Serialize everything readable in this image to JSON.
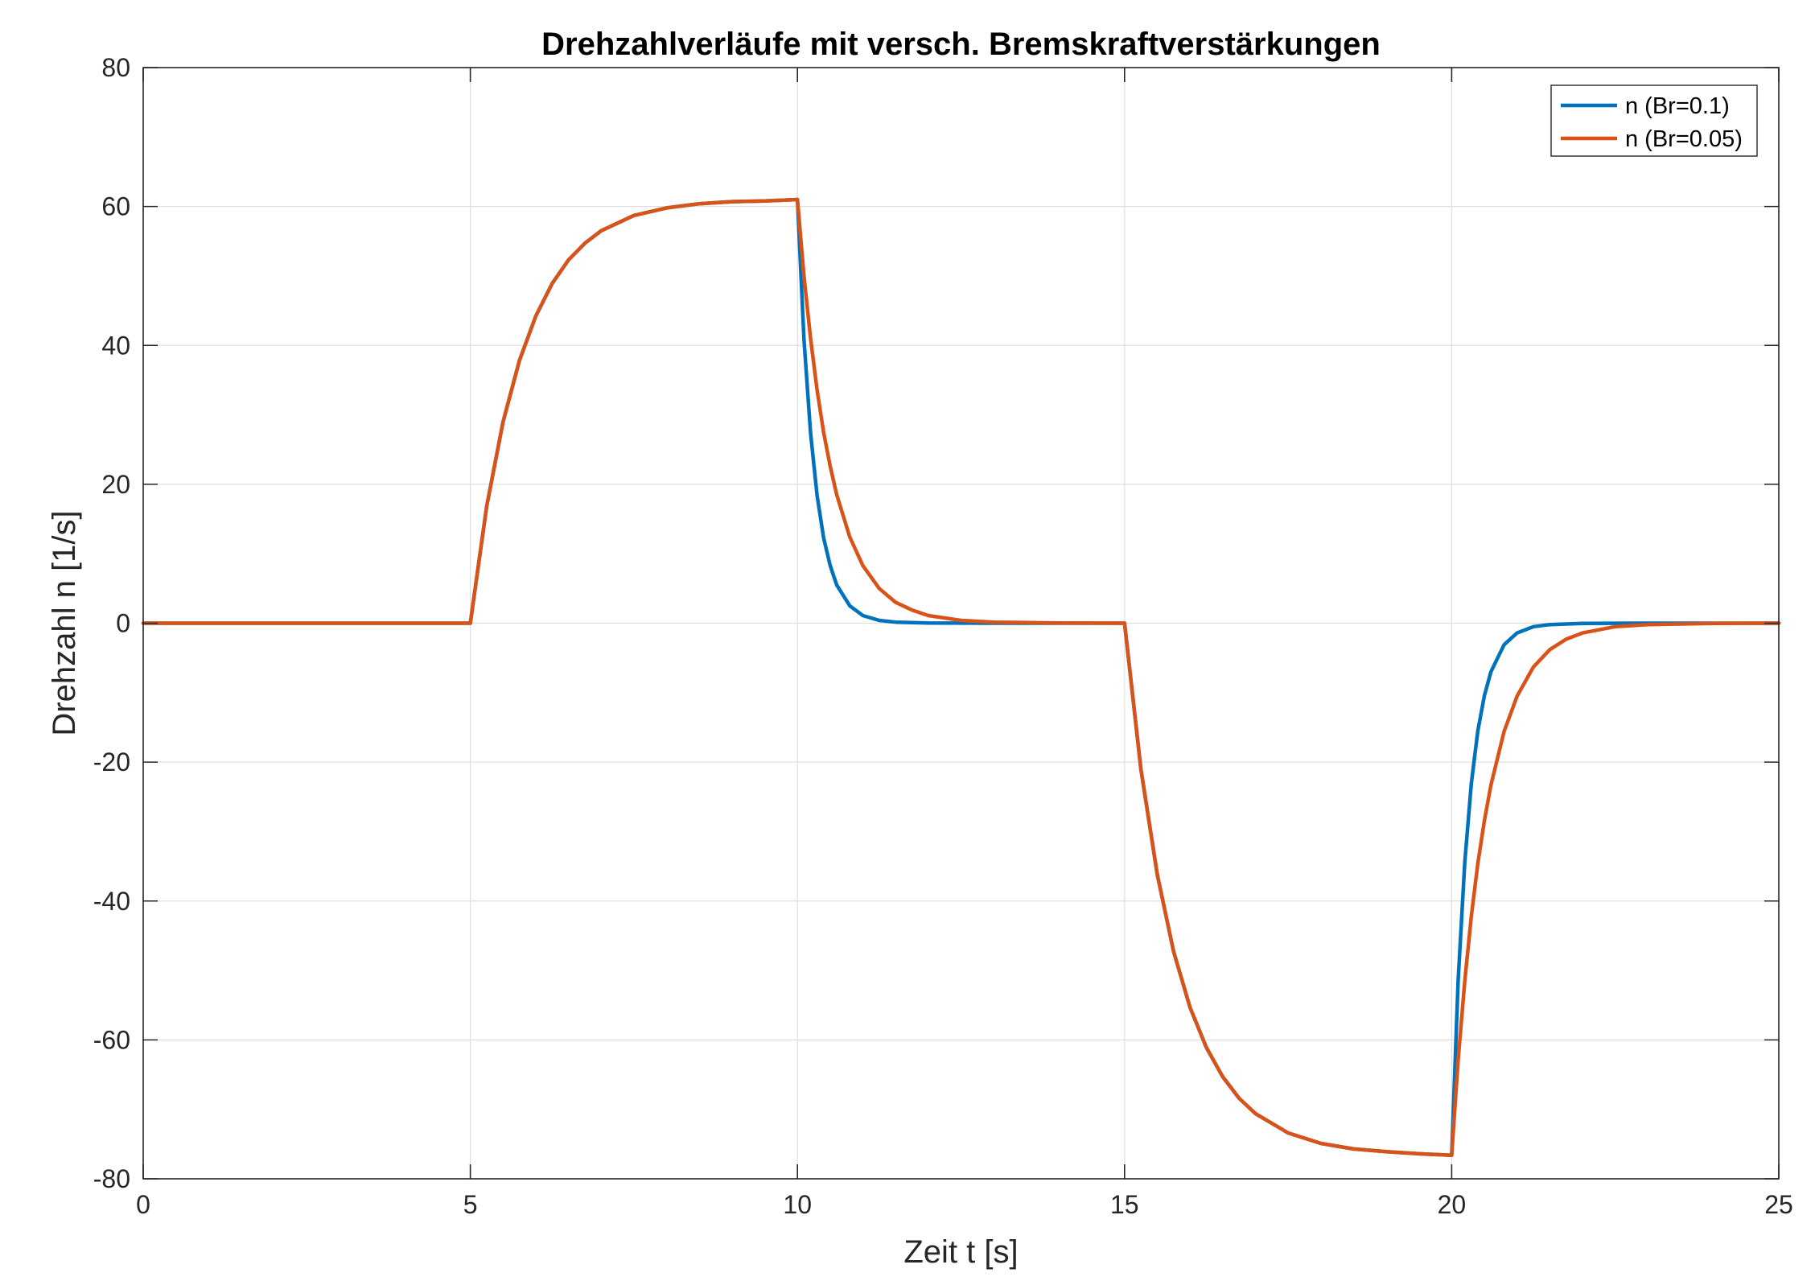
{
  "chart_data": {
    "type": "line",
    "title": "Drehzahlverläufe mit versch. Bremskraftverstärkungen",
    "xlabel": "Zeit t [s]",
    "ylabel": "Drehzahl n [1/s]",
    "xlim": [
      0,
      25
    ],
    "ylim": [
      -80,
      80
    ],
    "xticks": [
      0,
      5,
      10,
      15,
      20,
      25
    ],
    "yticks": [
      -80,
      -60,
      -40,
      -20,
      0,
      20,
      40,
      60,
      80
    ],
    "grid": true,
    "legend_position": "top-right",
    "series": [
      {
        "name": "n (Br=0.1)",
        "color": "#0072BD",
        "points": [
          [
            0,
            0
          ],
          [
            5,
            0
          ],
          [
            5.25,
            16.8
          ],
          [
            5.5,
            29.0
          ],
          [
            5.75,
            37.8
          ],
          [
            6,
            44.2
          ],
          [
            6.25,
            48.9
          ],
          [
            6.5,
            52.3
          ],
          [
            6.75,
            54.7
          ],
          [
            7,
            56.5
          ],
          [
            7.5,
            58.7
          ],
          [
            8,
            59.8
          ],
          [
            8.5,
            60.4
          ],
          [
            9,
            60.7
          ],
          [
            9.5,
            60.8
          ],
          [
            10,
            61.0
          ],
          [
            10.1,
            40.9
          ],
          [
            10.2,
            27.4
          ],
          [
            10.3,
            18.4
          ],
          [
            10.4,
            12.3
          ],
          [
            10.5,
            8.3
          ],
          [
            10.6,
            5.5
          ],
          [
            10.8,
            2.5
          ],
          [
            11,
            1.1
          ],
          [
            11.25,
            0.4
          ],
          [
            11.5,
            0.15
          ],
          [
            12,
            0.02
          ],
          [
            13,
            0
          ],
          [
            14,
            0
          ],
          [
            15,
            0
          ],
          [
            15.25,
            -21.0
          ],
          [
            15.5,
            -36.2
          ],
          [
            15.75,
            -47.3
          ],
          [
            16,
            -55.3
          ],
          [
            16.25,
            -61.1
          ],
          [
            16.5,
            -65.3
          ],
          [
            16.75,
            -68.4
          ],
          [
            17,
            -70.6
          ],
          [
            17.5,
            -73.4
          ],
          [
            18,
            -74.9
          ],
          [
            18.5,
            -75.7
          ],
          [
            19,
            -76.1
          ],
          [
            19.5,
            -76.4
          ],
          [
            20,
            -76.6
          ],
          [
            20.1,
            -51.3
          ],
          [
            20.2,
            -34.4
          ],
          [
            20.3,
            -23.1
          ],
          [
            20.4,
            -15.5
          ],
          [
            20.5,
            -10.4
          ],
          [
            20.6,
            -7.0
          ],
          [
            20.8,
            -3.1
          ],
          [
            21,
            -1.4
          ],
          [
            21.25,
            -0.5
          ],
          [
            21.5,
            -0.2
          ],
          [
            22,
            -0.02
          ],
          [
            23,
            0
          ],
          [
            24,
            0
          ],
          [
            25,
            0
          ]
        ]
      },
      {
        "name": "n (Br=0.05)",
        "color": "#D95319",
        "points": [
          [
            0,
            0
          ],
          [
            5,
            0
          ],
          [
            5.25,
            16.8
          ],
          [
            5.5,
            29.0
          ],
          [
            5.75,
            37.8
          ],
          [
            6,
            44.2
          ],
          [
            6.25,
            48.9
          ],
          [
            6.5,
            52.3
          ],
          [
            6.75,
            54.7
          ],
          [
            7,
            56.5
          ],
          [
            7.5,
            58.7
          ],
          [
            8,
            59.8
          ],
          [
            8.5,
            60.4
          ],
          [
            9,
            60.7
          ],
          [
            9.5,
            60.8
          ],
          [
            10,
            61.0
          ],
          [
            10.1,
            50.0
          ],
          [
            10.2,
            41.0
          ],
          [
            10.3,
            33.6
          ],
          [
            10.4,
            27.5
          ],
          [
            10.5,
            22.6
          ],
          [
            10.6,
            18.5
          ],
          [
            10.8,
            12.4
          ],
          [
            11,
            8.3
          ],
          [
            11.25,
            5.0
          ],
          [
            11.5,
            3.0
          ],
          [
            11.75,
            1.9
          ],
          [
            12,
            1.1
          ],
          [
            12.5,
            0.4
          ],
          [
            13,
            0.15
          ],
          [
            14,
            0.02
          ],
          [
            15,
            0
          ],
          [
            15.25,
            -21.0
          ],
          [
            15.5,
            -36.2
          ],
          [
            15.75,
            -47.3
          ],
          [
            16,
            -55.3
          ],
          [
            16.25,
            -61.1
          ],
          [
            16.5,
            -65.3
          ],
          [
            16.75,
            -68.4
          ],
          [
            17,
            -70.6
          ],
          [
            17.5,
            -73.4
          ],
          [
            18,
            -74.9
          ],
          [
            18.5,
            -75.7
          ],
          [
            19,
            -76.1
          ],
          [
            19.5,
            -76.4
          ],
          [
            20,
            -76.6
          ],
          [
            20.1,
            -62.8
          ],
          [
            20.2,
            -51.5
          ],
          [
            20.3,
            -42.2
          ],
          [
            20.4,
            -34.6
          ],
          [
            20.5,
            -28.4
          ],
          [
            20.6,
            -23.3
          ],
          [
            20.8,
            -15.6
          ],
          [
            21,
            -10.5
          ],
          [
            21.25,
            -6.3
          ],
          [
            21.5,
            -3.8
          ],
          [
            21.75,
            -2.3
          ],
          [
            22,
            -1.4
          ],
          [
            22.5,
            -0.5
          ],
          [
            23,
            -0.2
          ],
          [
            24,
            -0.02
          ],
          [
            25,
            0
          ]
        ]
      }
    ]
  }
}
